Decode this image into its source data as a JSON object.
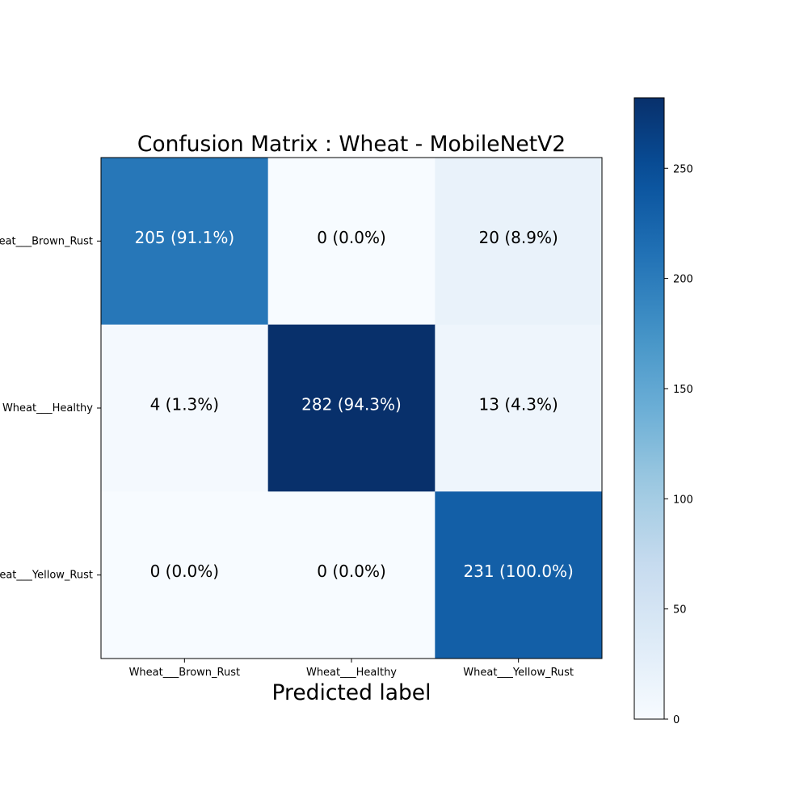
{
  "chart_data": {
    "type": "heatmap",
    "title": "Confusion Matrix : Wheat - MobileNetV2",
    "xlabel": "Predicted label",
    "ylabel": "",
    "x_categories": [
      "Wheat___Brown_Rust",
      "Wheat___Healthy",
      "Wheat___Yellow_Rust"
    ],
    "y_categories": [
      "Wheat___Brown_Rust",
      "Wheat___Healthy",
      "Wheat___Yellow_Rust"
    ],
    "values": [
      [
        205,
        0,
        20
      ],
      [
        4,
        282,
        13
      ],
      [
        0,
        0,
        231
      ]
    ],
    "cell_labels": [
      [
        "205 (91.1%)",
        "0 (0.0%)",
        "20 (8.9%)"
      ],
      [
        "4 (1.3%)",
        "282 (94.3%)",
        "13 (4.3%)"
      ],
      [
        "0 (0.0%)",
        "0 (0.0%)",
        "231 (100.0%)"
      ]
    ],
    "colormap": "Blues",
    "colorbar": {
      "range": [
        0,
        282
      ],
      "ticks": [
        0,
        50,
        100,
        150,
        200,
        250
      ],
      "tick_labels": [
        "0",
        "50",
        "100",
        "150",
        "200",
        "250"
      ]
    },
    "grid": false
  }
}
